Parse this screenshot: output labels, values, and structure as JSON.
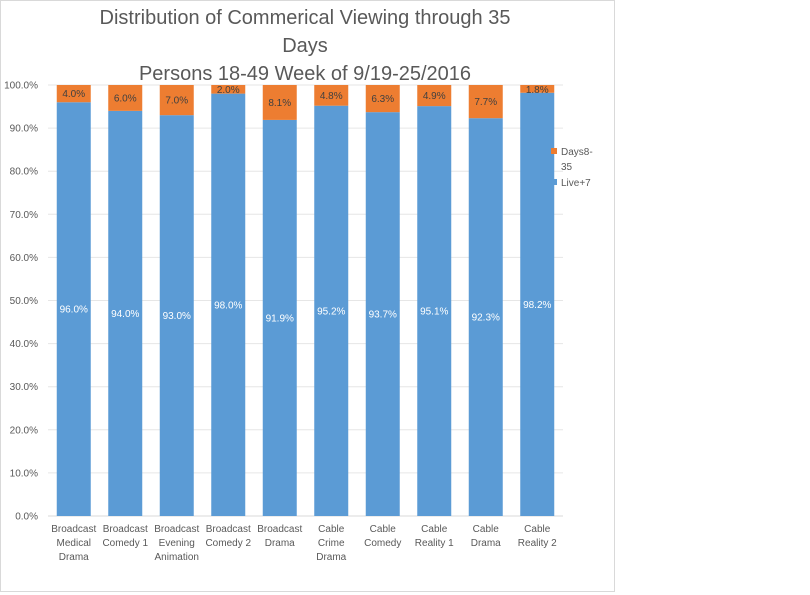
{
  "chart_data": {
    "type": "bar",
    "stacked": true,
    "title_lines": [
      "Distribution of Commerical Viewing through 35",
      "Days",
      "Persons 18-49   Week of 9/19-25/2016"
    ],
    "categories": [
      [
        "Broadcast",
        "Medical",
        "Drama"
      ],
      [
        "Broadcast",
        "Comedy 1"
      ],
      [
        "Broadcast",
        "Evening",
        "Animation"
      ],
      [
        "Broadcast",
        "Comedy 2"
      ],
      [
        "Broadcast",
        "Drama"
      ],
      [
        "Cable",
        "Crime",
        "Drama"
      ],
      [
        "Cable",
        "Comedy"
      ],
      [
        "Cable",
        "Reality 1"
      ],
      [
        "Cable",
        "Drama"
      ],
      [
        "Cable",
        "Reality 2"
      ]
    ],
    "series": [
      {
        "name": "Live+7",
        "color": "#5B9BD5",
        "values": [
          96.0,
          94.0,
          93.0,
          98.0,
          91.9,
          95.2,
          93.7,
          95.1,
          92.3,
          98.2
        ],
        "labels": [
          "96.0%",
          "94.0%",
          "93.0%",
          "98.0%",
          "91.9%",
          "95.2%",
          "93.7%",
          "95.1%",
          "92.3%",
          "98.2%"
        ]
      },
      {
        "name": "Days8-35",
        "color": "#ED7D31",
        "values": [
          4.0,
          6.0,
          7.0,
          2.0,
          8.1,
          4.8,
          6.3,
          4.9,
          7.7,
          1.8
        ],
        "labels": [
          "4.0%",
          "6.0%",
          "7.0%",
          "2.0%",
          "8.1%",
          "4.8%",
          "6.3%",
          "4.9%",
          "7.7%",
          "1.8%"
        ]
      }
    ],
    "legend": [
      {
        "lines": [
          "Days8-",
          "35"
        ],
        "color": "#ED7D31"
      },
      {
        "lines": [
          "Live+7"
        ],
        "color": "#5B9BD5"
      }
    ],
    "legend_position": "right",
    "xlabel": "",
    "ylabel": "",
    "ylim": [
      0,
      100
    ],
    "yticks": [
      0,
      10,
      20,
      30,
      40,
      50,
      60,
      70,
      80,
      90,
      100
    ],
    "ytick_labels": [
      "0.0%",
      "10.0%",
      "20.0%",
      "30.0%",
      "40.0%",
      "50.0%",
      "60.0%",
      "70.0%",
      "80.0%",
      "90.0%",
      "100.0%"
    ],
    "grid": true
  }
}
